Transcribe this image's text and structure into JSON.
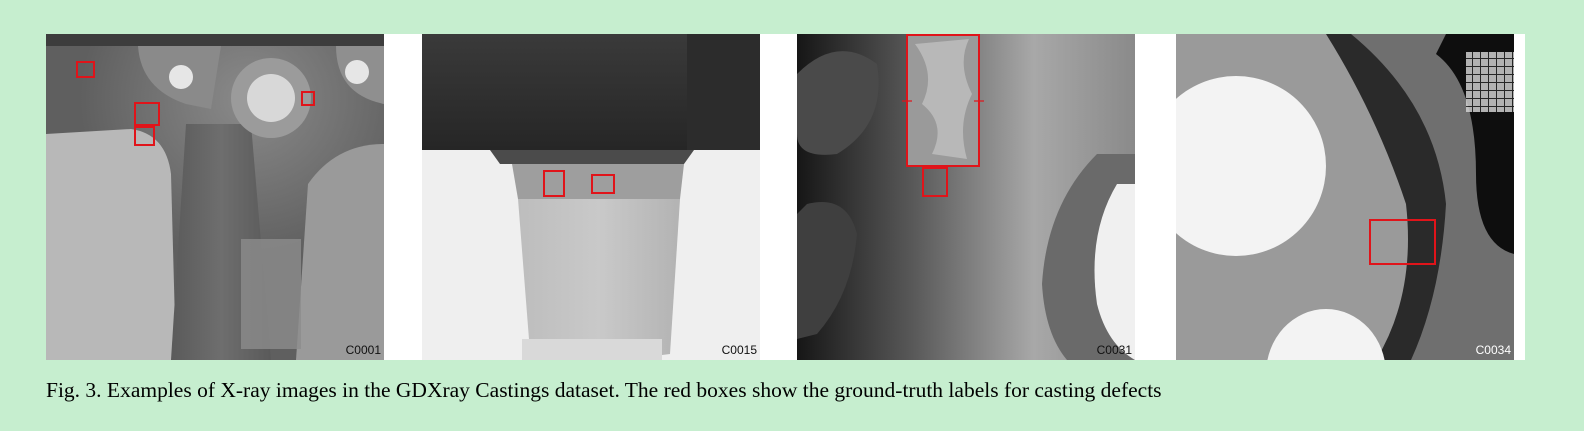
{
  "figure": {
    "panels": [
      {
        "label": "C0001"
      },
      {
        "label": "C0015"
      },
      {
        "label": "C0031"
      },
      {
        "label": "C0034"
      }
    ],
    "caption": "Fig. 3. Examples of X-ray images in the GDXray Castings dataset. The red boxes show the ground-truth labels for casting defects",
    "box_color": "#e0141a"
  }
}
